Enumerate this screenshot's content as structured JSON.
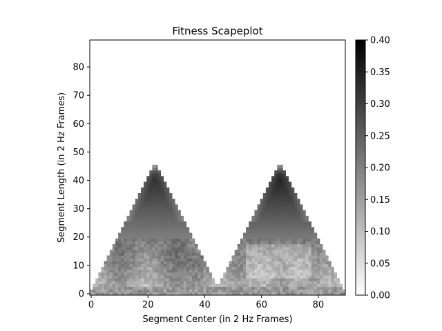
{
  "chart_data": {
    "type": "heatmap",
    "title": "Fitness Scapeplot",
    "xlabel": "Segment Center (in 2 Hz Frames)",
    "ylabel": "Segment Length (in 2 Hz Frames)",
    "xlim": [
      -0.5,
      89.5
    ],
    "ylim": [
      -0.5,
      89.5
    ],
    "xticks": [
      0,
      20,
      40,
      60,
      80
    ],
    "yticks": [
      0,
      10,
      20,
      30,
      40,
      50,
      60,
      70,
      80
    ],
    "colorbar": {
      "colormap": "gray_r",
      "vmin": 0.0,
      "vmax": 0.4,
      "ticks": [
        "0.00",
        "0.05",
        "0.10",
        "0.15",
        "0.20",
        "0.25",
        "0.30",
        "0.35",
        "0.40"
      ]
    },
    "grid": false,
    "description_of_regions": [
      {
        "region": "left triangle",
        "center_range": [
          0,
          45
        ],
        "max_length": 49,
        "peak_value": 0.32
      },
      {
        "region": "right triangle",
        "center_range": [
          44,
          89
        ],
        "max_length": 49,
        "peak_value": 0.34
      }
    ]
  }
}
